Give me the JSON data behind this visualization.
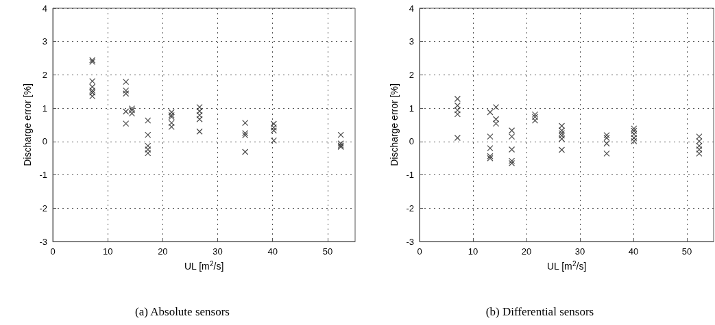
{
  "chart_data": [
    {
      "type": "scatter",
      "title": "(a) Absolute sensors",
      "xlabel": "UL [m$^{2}$/s]",
      "ylabel": "Discharge error [%]",
      "xlim": [
        0,
        55
      ],
      "xticks": [
        0,
        10,
        20,
        30,
        40,
        50
      ],
      "ylim": [
        -3,
        4
      ],
      "yticks": [
        -3,
        -2,
        -1,
        0,
        1,
        2,
        3,
        4
      ],
      "grid": true,
      "marker": "cross",
      "x": [
        7.2,
        7.2,
        7.2,
        7.2,
        7.2,
        7.2,
        7.2,
        13.3,
        13.3,
        13.3,
        13.3,
        13.3,
        14.4,
        14.4,
        14.4,
        17.3,
        17.3,
        17.3,
        17.3,
        17.3,
        21.6,
        21.6,
        21.6,
        21.6,
        21.6,
        26.7,
        26.7,
        26.7,
        26.7,
        26.7,
        35,
        35,
        35,
        35,
        40.2,
        40.2,
        40.2,
        40.2,
        52.4,
        52.4,
        52.4,
        52.4
      ],
      "series": [
        {
          "color": "#2b2b2b",
          "values": [
            2.44,
            2.39,
            1.81,
            1.64,
            1.53,
            1.47,
            1.36,
            1.79,
            1.53,
            1.44,
            0.9,
            0.54,
            0.99,
            0.94,
            0.84,
            0.63,
            0.2,
            -0.13,
            -0.24,
            -0.35,
            0.88,
            0.79,
            0.74,
            0.56,
            0.44,
            1.03,
            0.91,
            0.79,
            0.67,
            0.3,
            0.56,
            0.25,
            0.19,
            -0.31,
            0.53,
            0.42,
            0.33,
            0.03,
            0.2,
            -0.06,
            -0.12,
            -0.16
          ]
        }
      ]
    },
    {
      "type": "scatter",
      "title": "(b) Differential sensors",
      "xlabel": "UL [m$^{2}$/s]",
      "ylabel": "Discharge error [%]",
      "xlim": [
        0,
        55
      ],
      "xticks": [
        0,
        10,
        20,
        30,
        40,
        50
      ],
      "ylim": [
        -3,
        4
      ],
      "yticks": [
        -3,
        -2,
        -1,
        0,
        1,
        2,
        3,
        4
      ],
      "grid": true,
      "marker": "cross",
      "x": [
        7.1,
        7.1,
        7.1,
        7.1,
        7.1,
        13.2,
        13.2,
        13.2,
        13.2,
        13.2,
        14.3,
        14.3,
        14.3,
        17.25,
        17.25,
        17.25,
        17.25,
        17.25,
        21.6,
        21.6,
        21.6,
        26.6,
        26.6,
        26.6,
        26.6,
        26.6,
        26.6,
        35,
        35,
        35,
        35,
        40.1,
        40.1,
        40.1,
        40.1,
        40.1,
        52.3,
        52.3,
        52.3,
        52.3,
        52.3
      ],
      "series": [
        {
          "color": "#2b2b2b",
          "values": [
            1.28,
            1.08,
            0.94,
            0.82,
            0.11,
            0.88,
            0.15,
            -0.2,
            -0.44,
            -0.5,
            1.03,
            0.67,
            0.54,
            0.33,
            0.15,
            -0.24,
            -0.58,
            -0.65,
            0.81,
            0.74,
            0.63,
            0.47,
            0.33,
            0.25,
            0.18,
            0.08,
            -0.25,
            0.19,
            0.11,
            -0.06,
            -0.36,
            0.39,
            0.32,
            0.22,
            0.11,
            0.01,
            0.15,
            0.01,
            -0.13,
            -0.24,
            -0.36
          ]
        }
      ]
    }
  ]
}
